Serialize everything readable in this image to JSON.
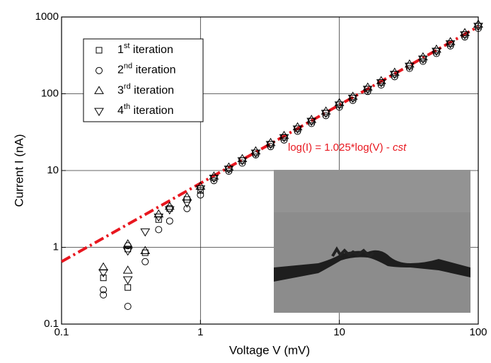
{
  "chart_data": {
    "type": "scatter",
    "xlabel": "Voltage V (mV)",
    "ylabel": "Current I (nA)",
    "xscale": "log",
    "yscale": "log",
    "xlim": [
      0.1,
      100
    ],
    "ylim": [
      0.1,
      1000
    ],
    "xticks": [
      0.1,
      1,
      10,
      100
    ],
    "yticks": [
      0.1,
      1,
      10,
      100,
      1000
    ],
    "grid": true,
    "legend": "upper left",
    "series": [
      {
        "name": "1st iteration",
        "marker": "square",
        "color": "#000000",
        "x": [
          0.2,
          0.3,
          0.3,
          0.4,
          0.5,
          0.6,
          0.8,
          1,
          1.25,
          1.6,
          2,
          2.5,
          3.2,
          4,
          5,
          6.3,
          8,
          10,
          12.5,
          16,
          20,
          25,
          32,
          40,
          50,
          63,
          80,
          100
        ],
        "values": [
          0.4,
          0.3,
          0.95,
          0.85,
          2.3,
          3.2,
          4.2,
          5.5,
          8,
          10.5,
          13.5,
          17,
          22,
          27,
          35,
          44,
          56,
          72,
          88,
          115,
          140,
          180,
          230,
          285,
          360,
          450,
          590,
          760
        ]
      },
      {
        "name": "2nd iteration",
        "marker": "circle",
        "color": "#000000",
        "x": [
          0.2,
          0.2,
          0.3,
          0.3,
          0.4,
          0.5,
          0.6,
          0.8,
          1,
          1.25,
          1.6,
          2,
          2.5,
          3.2,
          4,
          5,
          6.3,
          8,
          10,
          12.5,
          16,
          20,
          25,
          32,
          40,
          50,
          63,
          80,
          100
        ],
        "values": [
          0.24,
          0.28,
          0.17,
          1.05,
          0.65,
          1.7,
          2.2,
          3.2,
          4.8,
          7.4,
          9.8,
          12.5,
          16,
          20.5,
          25,
          32.5,
          41,
          52,
          67,
          82,
          107,
          130,
          167,
          214,
          265,
          335,
          420,
          550,
          710
        ]
      },
      {
        "name": "3rd iteration",
        "marker": "triangle-up",
        "color": "#000000",
        "x": [
          0.2,
          0.3,
          0.3,
          0.4,
          0.5,
          0.6,
          0.8,
          1,
          1.25,
          1.6,
          2,
          2.5,
          3.2,
          4,
          5,
          6.3,
          8,
          10,
          12.5,
          16,
          20,
          25,
          32,
          40,
          50,
          63,
          80,
          100
        ],
        "values": [
          0.55,
          0.5,
          1.1,
          0.9,
          2.7,
          3.4,
          4.5,
          6.2,
          8.4,
          11,
          14.2,
          17.9,
          23,
          28.4,
          36.8,
          46,
          59,
          76,
          92,
          121,
          147,
          189,
          242,
          300,
          378,
          473,
          620,
          800
        ]
      },
      {
        "name": "4th iteration",
        "marker": "triangle-down",
        "color": "#000000",
        "x": [
          0.2,
          0.3,
          0.3,
          0.4,
          0.5,
          0.6,
          0.8,
          1,
          1.25,
          1.6,
          2,
          2.5,
          3.2,
          4,
          5,
          6.3,
          8,
          10,
          12.5,
          16,
          20,
          25,
          32,
          40,
          50,
          63,
          80,
          100
        ],
        "values": [
          0.47,
          0.38,
          0.9,
          1.6,
          2.5,
          3.1,
          3.8,
          5.8,
          8,
          10.5,
          13.5,
          17,
          22,
          27,
          35,
          44,
          56,
          72,
          88,
          115,
          140,
          180,
          230,
          285,
          360,
          450,
          590,
          760
        ]
      }
    ],
    "fit": {
      "x": [
        0.1,
        100
      ],
      "values": [
        0.65,
        750
      ],
      "color": "#e8171f"
    },
    "annotation": "log(I) = 1.025*log(V) - cst",
    "annotation_color": "#e8171f"
  }
}
